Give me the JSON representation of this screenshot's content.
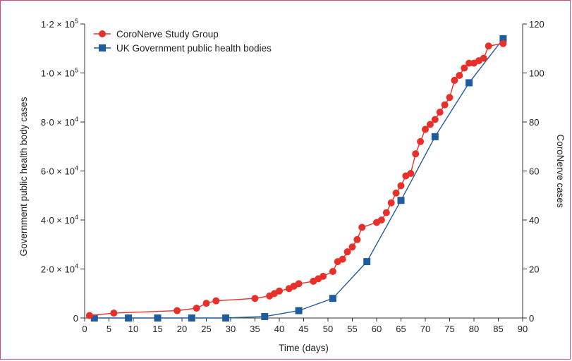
{
  "chart_data": {
    "type": "line",
    "xlabel": "Time (days)",
    "ylabel_left": "Government public health body cases",
    "ylabel_right": "CoroNerve cases",
    "xlim": [
      0,
      90
    ],
    "ylim_left": [
      0,
      120000
    ],
    "ylim_right": [
      0,
      120
    ],
    "x_ticks": [
      "0",
      "5",
      "10",
      "15",
      "20",
      "25",
      "30",
      "35",
      "40",
      "45",
      "50",
      "55",
      "60",
      "65",
      "70",
      "75",
      "80",
      "85",
      "90"
    ],
    "y_left_ticks": [
      {
        "mant": "0",
        "exp": ""
      },
      {
        "mant": "2·0 × 10",
        "exp": "4"
      },
      {
        "mant": "4·0 × 10",
        "exp": "4"
      },
      {
        "mant": "6·0 × 10",
        "exp": "4"
      },
      {
        "mant": "8·0 × 10",
        "exp": "4"
      },
      {
        "mant": "1·0 × 10",
        "exp": "5"
      },
      {
        "mant": "1·2 × 10",
        "exp": "5"
      }
    ],
    "y_right_ticks": [
      "0",
      "20",
      "40",
      "60",
      "80",
      "100",
      "120"
    ],
    "legend_placement": "top-left",
    "series": [
      {
        "name": "CoroNerve Study Group",
        "axis": "right",
        "color": "#e8302a",
        "marker": "circle",
        "x": [
          1,
          6,
          19,
          23,
          25,
          27,
          35,
          38,
          39,
          40,
          42,
          43,
          44,
          47,
          48,
          49,
          51,
          52,
          53,
          54,
          55,
          56,
          57,
          60,
          61,
          62,
          63,
          64,
          65,
          66,
          67,
          68,
          69,
          70,
          71,
          72,
          73,
          74,
          75,
          76,
          77,
          78,
          79,
          80,
          81,
          82,
          83,
          86
        ],
        "y": [
          1,
          2,
          3,
          4,
          6,
          7,
          8,
          9,
          10,
          11,
          12,
          13,
          14,
          15,
          16,
          17,
          19,
          23,
          24,
          27,
          29,
          32,
          37,
          39,
          40,
          43,
          47,
          51,
          54,
          58,
          59,
          67,
          72,
          77,
          79,
          81,
          84,
          87,
          90,
          97,
          99,
          102,
          104,
          104,
          105,
          106,
          111,
          112
        ]
      },
      {
        "name": "UK Government public health bodies",
        "axis": "left",
        "color": "#1f5c9e",
        "marker": "square",
        "x": [
          2,
          9,
          15,
          22,
          29,
          37,
          44,
          51,
          58,
          65,
          72,
          79,
          86
        ],
        "y": [
          0,
          0,
          0,
          0,
          0,
          600,
          3000,
          8000,
          23000,
          48000,
          74000,
          96000,
          114000
        ]
      }
    ]
  }
}
